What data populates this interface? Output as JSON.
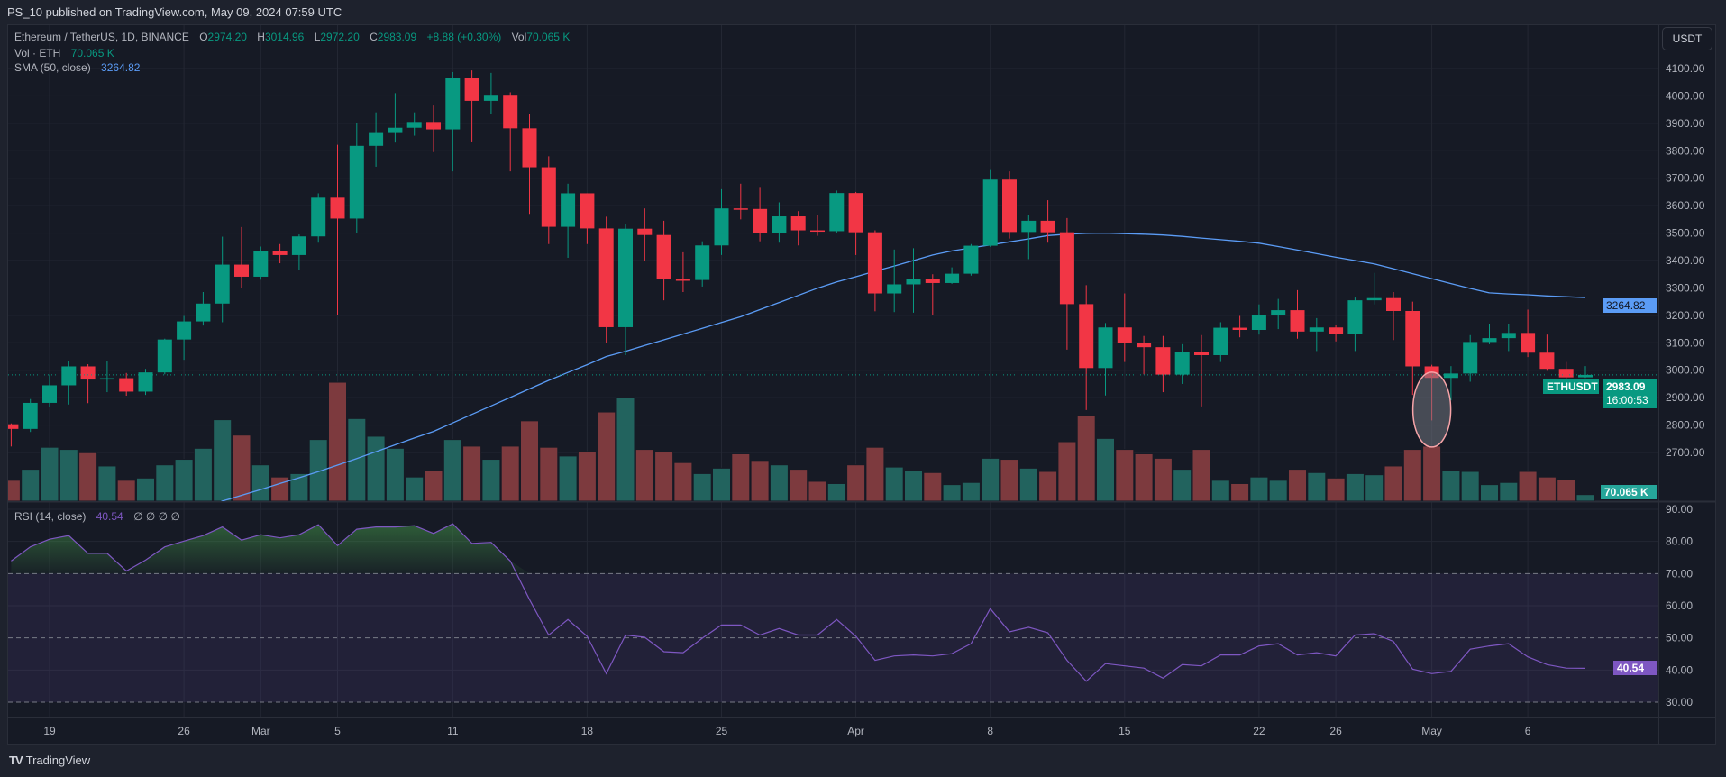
{
  "header": {
    "published": "PS_10 published on TradingView.com, May 09, 2024 07:59 UTC"
  },
  "legend": {
    "symbol": "Ethereum / TetherUS, 1D, BINANCE",
    "o_label": "O",
    "o": "2974.20",
    "h_label": "H",
    "h": "3014.96",
    "l_label": "L",
    "l": "2972.20",
    "c_label": "C",
    "c": "2983.09",
    "change": "+8.88 (+0.30%)",
    "vol_label": "Vol",
    "vol": "70.065 K",
    "vol_ind_label": "Vol · ETH",
    "vol_ind_value": "70.065 K",
    "sma_label": "SMA (50, close)",
    "sma_value": "3264.82",
    "rsi_label": "RSI (14, close)",
    "rsi_value": "40.54",
    "rsi_extra": "∅ ∅ ∅ ∅"
  },
  "price_axis": {
    "currency_button": "USDT",
    "ticks": [
      "4100.00",
      "4000.00",
      "3900.00",
      "3800.00",
      "3700.00",
      "3600.00",
      "3500.00",
      "3400.00",
      "3300.00",
      "3200.00",
      "3100.00",
      "3000.00",
      "2900.00",
      "2800.00",
      "2700.00"
    ]
  },
  "rsi_axis": {
    "ticks": [
      "90.00",
      "80.00",
      "70.00",
      "60.00",
      "50.00",
      "40.00",
      "30.00"
    ]
  },
  "tags": {
    "sma": "3264.82",
    "symbol": "ETHUSDT",
    "price": "2983.09",
    "countdown": "16:00:53",
    "volume": "70.065 K",
    "rsi": "40.54"
  },
  "time_axis": {
    "ticks": [
      {
        "i": 2,
        "label": "19"
      },
      {
        "i": 9,
        "label": "26"
      },
      {
        "i": 13,
        "label": "Mar"
      },
      {
        "i": 17,
        "label": "5"
      },
      {
        "i": 23,
        "label": "11"
      },
      {
        "i": 30,
        "label": "18"
      },
      {
        "i": 37,
        "label": "25"
      },
      {
        "i": 44,
        "label": "Apr"
      },
      {
        "i": 51,
        "label": "8"
      },
      {
        "i": 58,
        "label": "15"
      },
      {
        "i": 65,
        "label": "22"
      },
      {
        "i": 69,
        "label": "26"
      },
      {
        "i": 74,
        "label": "May"
      },
      {
        "i": 79,
        "label": "6"
      }
    ]
  },
  "footer": {
    "brand": "TradingView"
  },
  "colors": {
    "up": "#089981",
    "down": "#f23645",
    "sma": "#5b9cf6",
    "rsi": "#7e57c2",
    "vol_up": "#22635e",
    "vol_down": "#7d3a3e"
  },
  "chart_data": {
    "type": "candlestick",
    "symbol": "ETHUSDT",
    "ylim": [
      2650,
      4150
    ],
    "rsi_levels": [
      70,
      50,
      30
    ],
    "dates": [
      "2024-02-17",
      "2024-02-18",
      "2024-02-19",
      "2024-02-20",
      "2024-02-21",
      "2024-02-22",
      "2024-02-23",
      "2024-02-24",
      "2024-02-25",
      "2024-02-26",
      "2024-02-27",
      "2024-02-28",
      "2024-02-29",
      "2024-03-01",
      "2024-03-02",
      "2024-03-03",
      "2024-03-04",
      "2024-03-05",
      "2024-03-06",
      "2024-03-07",
      "2024-03-08",
      "2024-03-09",
      "2024-03-10",
      "2024-03-11",
      "2024-03-12",
      "2024-03-13",
      "2024-03-14",
      "2024-03-15",
      "2024-03-16",
      "2024-03-17",
      "2024-03-18",
      "2024-03-19",
      "2024-03-20",
      "2024-03-21",
      "2024-03-22",
      "2024-03-23",
      "2024-03-24",
      "2024-03-25",
      "2024-03-26",
      "2024-03-27",
      "2024-03-28",
      "2024-03-29",
      "2024-03-30",
      "2024-03-31",
      "2024-04-01",
      "2024-04-02",
      "2024-04-03",
      "2024-04-04",
      "2024-04-05",
      "2024-04-06",
      "2024-04-07",
      "2024-04-08",
      "2024-04-09",
      "2024-04-10",
      "2024-04-11",
      "2024-04-12",
      "2024-04-13",
      "2024-04-14",
      "2024-04-15",
      "2024-04-16",
      "2024-04-17",
      "2024-04-18",
      "2024-04-19",
      "2024-04-20",
      "2024-04-21",
      "2024-04-22",
      "2024-04-23",
      "2024-04-24",
      "2024-04-25",
      "2024-04-26",
      "2024-04-27",
      "2024-04-28",
      "2024-04-29",
      "2024-04-30",
      "2024-05-01",
      "2024-05-02",
      "2024-05-03",
      "2024-05-04",
      "2024-05-05",
      "2024-05-06",
      "2024-05-07",
      "2024-05-08",
      "2024-05-09"
    ],
    "ohlc": [
      [
        2803,
        2806,
        2722,
        2786
      ],
      [
        2786,
        2895,
        2775,
        2881
      ],
      [
        2881,
        2984,
        2865,
        2945
      ],
      [
        2945,
        3035,
        2875,
        3014
      ],
      [
        3014,
        3022,
        2880,
        2966
      ],
      [
        2966,
        3034,
        2920,
        2971
      ],
      [
        2971,
        2990,
        2907,
        2922
      ],
      [
        2922,
        3005,
        2910,
        2992
      ],
      [
        2992,
        3115,
        2985,
        3112
      ],
      [
        3112,
        3198,
        3038,
        3178
      ],
      [
        3178,
        3285,
        3163,
        3243
      ],
      [
        3243,
        3487,
        3175,
        3385
      ],
      [
        3385,
        3522,
        3300,
        3341
      ],
      [
        3341,
        3451,
        3330,
        3434
      ],
      [
        3434,
        3460,
        3390,
        3420
      ],
      [
        3420,
        3495,
        3365,
        3488
      ],
      [
        3488,
        3645,
        3465,
        3629
      ],
      [
        3629,
        3822,
        3200,
        3553
      ],
      [
        3553,
        3900,
        3500,
        3818
      ],
      [
        3818,
        3940,
        3742,
        3868
      ],
      [
        3868,
        4010,
        3830,
        3884
      ],
      [
        3884,
        3940,
        3855,
        3905
      ],
      [
        3905,
        3965,
        3795,
        3878
      ],
      [
        3878,
        4087,
        3725,
        4067
      ],
      [
        4067,
        4093,
        3834,
        3982
      ],
      [
        3982,
        4084,
        3935,
        4004
      ],
      [
        4004,
        4013,
        3725,
        3882
      ],
      [
        3882,
        3935,
        3570,
        3740
      ],
      [
        3740,
        3780,
        3460,
        3523
      ],
      [
        3523,
        3680,
        3410,
        3645
      ],
      [
        3645,
        3645,
        3460,
        3517
      ],
      [
        3517,
        3560,
        3100,
        3157
      ],
      [
        3157,
        3534,
        3055,
        3516
      ],
      [
        3516,
        3590,
        3400,
        3493
      ],
      [
        3493,
        3545,
        3255,
        3331
      ],
      [
        3331,
        3430,
        3285,
        3329
      ],
      [
        3329,
        3470,
        3305,
        3455
      ],
      [
        3455,
        3660,
        3420,
        3590
      ],
      [
        3590,
        3680,
        3550,
        3588
      ],
      [
        3588,
        3665,
        3470,
        3500
      ],
      [
        3500,
        3612,
        3465,
        3561
      ],
      [
        3561,
        3580,
        3455,
        3510
      ],
      [
        3510,
        3565,
        3490,
        3507
      ],
      [
        3507,
        3655,
        3500,
        3646
      ],
      [
        3646,
        3650,
        3420,
        3503
      ],
      [
        3503,
        3510,
        3215,
        3280
      ],
      [
        3280,
        3440,
        3212,
        3313
      ],
      [
        3313,
        3445,
        3210,
        3331
      ],
      [
        3331,
        3350,
        3200,
        3318
      ],
      [
        3318,
        3375,
        3315,
        3352
      ],
      [
        3352,
        3460,
        3345,
        3454
      ],
      [
        3454,
        3730,
        3450,
        3695
      ],
      [
        3695,
        3725,
        3480,
        3504
      ],
      [
        3504,
        3565,
        3405,
        3545
      ],
      [
        3545,
        3620,
        3465,
        3503
      ],
      [
        3503,
        3555,
        3075,
        3241
      ],
      [
        3241,
        3310,
        2855,
        3008
      ],
      [
        3008,
        3172,
        2908,
        3156
      ],
      [
        3156,
        3280,
        3030,
        3101
      ],
      [
        3101,
        3125,
        2985,
        3084
      ],
      [
        3084,
        3125,
        2920,
        2984
      ],
      [
        2984,
        3095,
        2950,
        3065
      ],
      [
        3065,
        3128,
        2868,
        3055
      ],
      [
        3055,
        3175,
        3030,
        3155
      ],
      [
        3155,
        3198,
        3120,
        3147
      ],
      [
        3147,
        3240,
        3130,
        3201
      ],
      [
        3201,
        3260,
        3150,
        3219
      ],
      [
        3219,
        3292,
        3115,
        3141
      ],
      [
        3141,
        3190,
        3070,
        3156
      ],
      [
        3156,
        3165,
        3105,
        3131
      ],
      [
        3131,
        3265,
        3070,
        3255
      ],
      [
        3255,
        3355,
        3240,
        3263
      ],
      [
        3263,
        3285,
        3110,
        3216
      ],
      [
        3216,
        3250,
        2910,
        3014
      ],
      [
        3014,
        3020,
        2817,
        2972
      ],
      [
        2972,
        3015,
        2890,
        2988
      ],
      [
        2988,
        3128,
        2958,
        3103
      ],
      [
        3103,
        3170,
        3095,
        3117
      ],
      [
        3117,
        3170,
        3070,
        3136
      ],
      [
        3136,
        3221,
        3048,
        3064
      ],
      [
        3064,
        3130,
        2998,
        3005
      ],
      [
        3005,
        3030,
        2937,
        2974
      ],
      [
        2974.2,
        3014.96,
        2972.2,
        2983.09
      ]
    ],
    "volume_k": [
      222,
      339,
      573,
      550,
      515,
      374,
      222,
      246,
      386,
      445,
      562,
      866,
      702,
      386,
      257,
      293,
      655,
      1264,
      878,
      690,
      562,
      257,
      328,
      655,
      585,
      445,
      585,
      854,
      573,
      480,
      527,
      948,
      1100,
      550,
      527,
      410,
      293,
      351,
      503,
      433,
      386,
      339,
      211,
      187,
      386,
      573,
      363,
      328,
      304,
      176,
      199,
      456,
      445,
      351,
      316,
      632,
      913,
      667,
      550,
      503,
      456,
      339,
      550,
      222,
      187,
      257,
      222,
      339,
      304,
      246,
      293,
      281,
      374,
      550,
      585,
      328,
      316,
      176,
      199,
      316,
      257,
      234,
      70.065
    ],
    "sma50": [
      null,
      null,
      null,
      null,
      null,
      null,
      null,
      null,
      null,
      null,
      2490,
      2523,
      2544,
      2565,
      2587,
      2608,
      2630,
      2654,
      2678,
      2703,
      2728,
      2753,
      2777,
      2808,
      2839,
      2870,
      2901,
      2932,
      2963,
      2992,
      3020,
      3050,
      3069,
      3090,
      3111,
      3132,
      3153,
      3174,
      3195,
      3221,
      3247,
      3273,
      3299,
      3322,
      3341,
      3361,
      3380,
      3400,
      3420,
      3435,
      3446,
      3457,
      3468,
      3479,
      3491,
      3496,
      3499,
      3500,
      3498,
      3496,
      3493,
      3488,
      3482,
      3476,
      3470,
      3463,
      3451,
      3438,
      3425,
      3412,
      3400,
      3388,
      3370,
      3352,
      3334,
      3316,
      3298,
      3282,
      3278,
      3275,
      3271,
      3268,
      3264.82
    ],
    "rsi14": [
      73.9,
      78.3,
      80.7,
      81.8,
      76.3,
      76.3,
      70.8,
      74.2,
      78.3,
      80.1,
      81.8,
      84.5,
      80.4,
      82.1,
      81.1,
      82.1,
      85.2,
      78.7,
      83.8,
      84.5,
      84.5,
      84.9,
      82.5,
      85.5,
      79.4,
      79.7,
      73.9,
      61.9,
      50.9,
      55.7,
      50.5,
      38.9,
      50.9,
      50.2,
      45.7,
      45.4,
      49.9,
      54.0,
      54.0,
      50.9,
      52.9,
      50.9,
      50.9,
      55.7,
      50.5,
      43.0,
      44.4,
      44.7,
      44.4,
      45.1,
      48.2,
      59.1,
      51.9,
      53.3,
      51.6,
      43.0,
      36.5,
      42.0,
      41.3,
      40.6,
      37.5,
      41.7,
      41.3,
      44.7,
      44.7,
      47.5,
      48.2,
      44.7,
      45.4,
      44.4,
      50.9,
      51.3,
      48.9,
      40.3,
      38.9,
      39.6,
      46.5,
      47.5,
      48.2,
      44.1,
      41.7,
      40.6,
      40.54
    ],
    "highlight": {
      "shape": "ellipse",
      "date": "2024-05-01",
      "price_range": [
        2720,
        2993
      ]
    }
  }
}
